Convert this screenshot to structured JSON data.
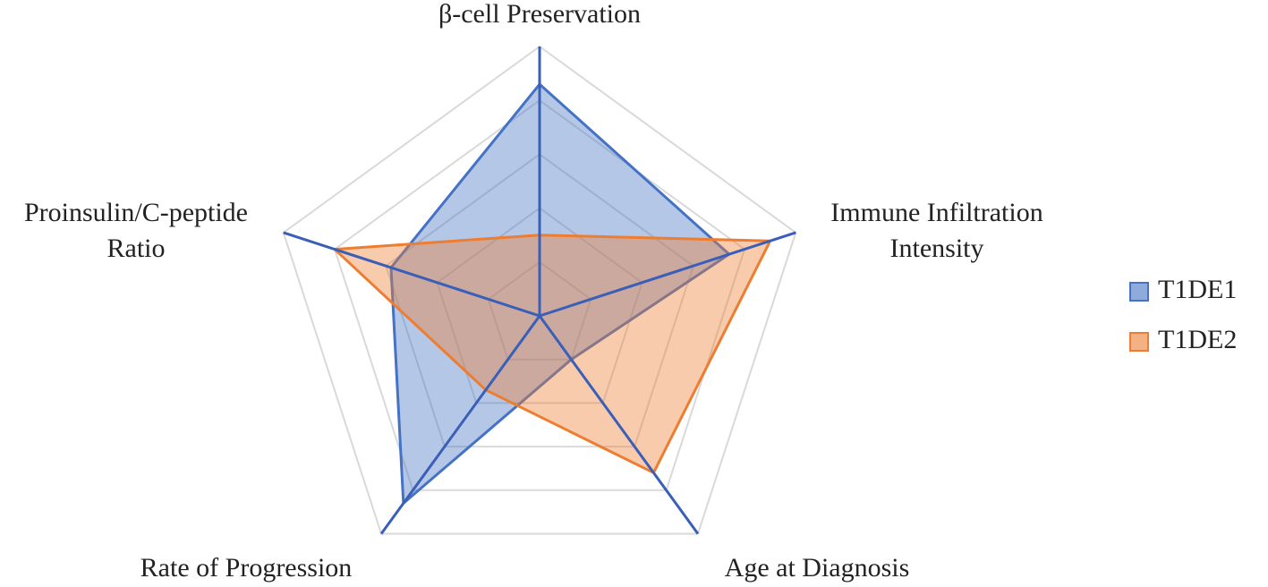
{
  "chart_data": {
    "type": "radar",
    "categories": [
      "β-cell Preservation",
      "Immune Infiltration Intensity",
      "Age at Diagnosis",
      "Rate of Progression",
      "Proinsulin/C-peptide Ratio"
    ],
    "series": [
      {
        "name": "T1DE1",
        "color": "#4472c4",
        "values": [
          4.3,
          3.7,
          1.0,
          4.3,
          2.9
        ]
      },
      {
        "name": "T1DE2",
        "color": "#ed7d31",
        "values": [
          1.5,
          4.5,
          3.6,
          1.7,
          4.0
        ]
      }
    ],
    "ylim": [
      0,
      5
    ],
    "yticks": [
      1,
      2,
      3,
      4,
      5
    ],
    "grid": true,
    "legend": "right"
  }
}
